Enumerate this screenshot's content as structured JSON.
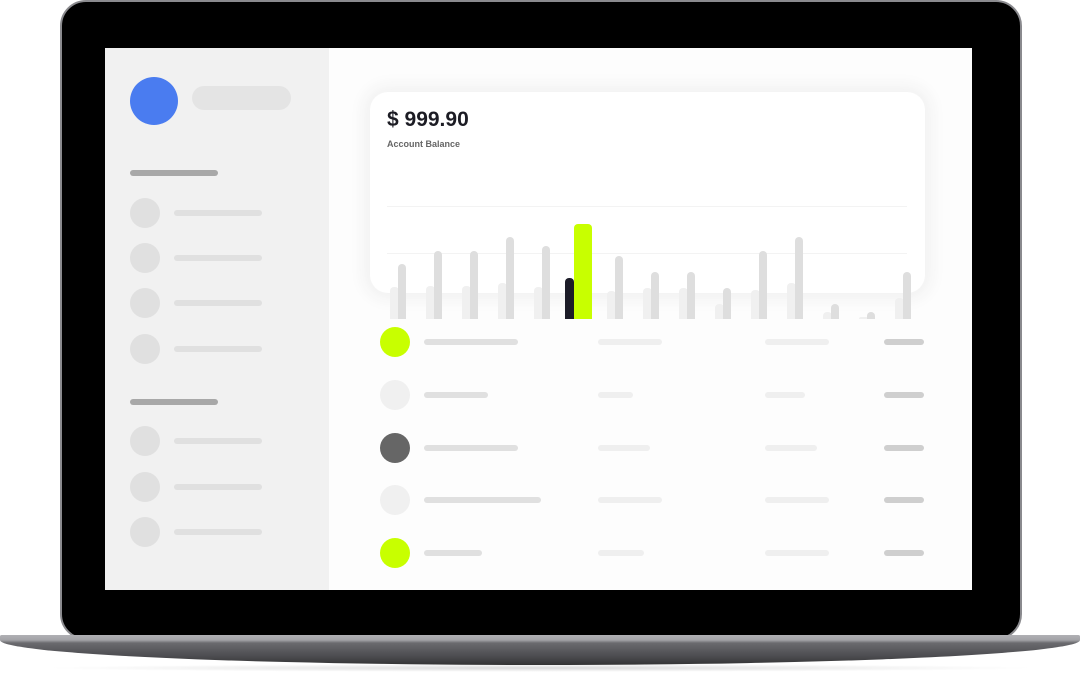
{
  "balance": {
    "amount": "$ 999.90",
    "label": "Account Balance"
  },
  "colors": {
    "accent": "#c8ff00",
    "avatar": "#4a7cf0",
    "dark": "#1c1c28",
    "bar_light": "#f0f0f0",
    "bar_mid": "#dedede"
  },
  "sidebar": {
    "avatar_icon": "user-avatar",
    "sections": [
      {
        "items": 4
      },
      {
        "items": 3
      }
    ]
  },
  "transactions": [
    {
      "icon_color": "#c8ff00"
    },
    {
      "icon_color": "#f0f0f0"
    },
    {
      "icon_color": "#666666"
    },
    {
      "icon_color": "#f0f0f0"
    },
    {
      "icon_color": "#c8ff00"
    }
  ],
  "chart_data": {
    "type": "bar",
    "title": "",
    "xlabel": "",
    "ylabel": "",
    "ylim": [
      0,
      100
    ],
    "grid": true,
    "highlight_index": 5,
    "series": [
      {
        "values": [
          32,
          33,
          33,
          36,
          32,
          41,
          28,
          31,
          31,
          15,
          29,
          36,
          7,
          2,
          21
        ]
      },
      {
        "values": [
          55,
          68,
          68,
          82,
          73,
          95,
          63,
          47,
          47,
          31,
          68,
          82,
          15,
          7,
          47
        ]
      }
    ]
  }
}
